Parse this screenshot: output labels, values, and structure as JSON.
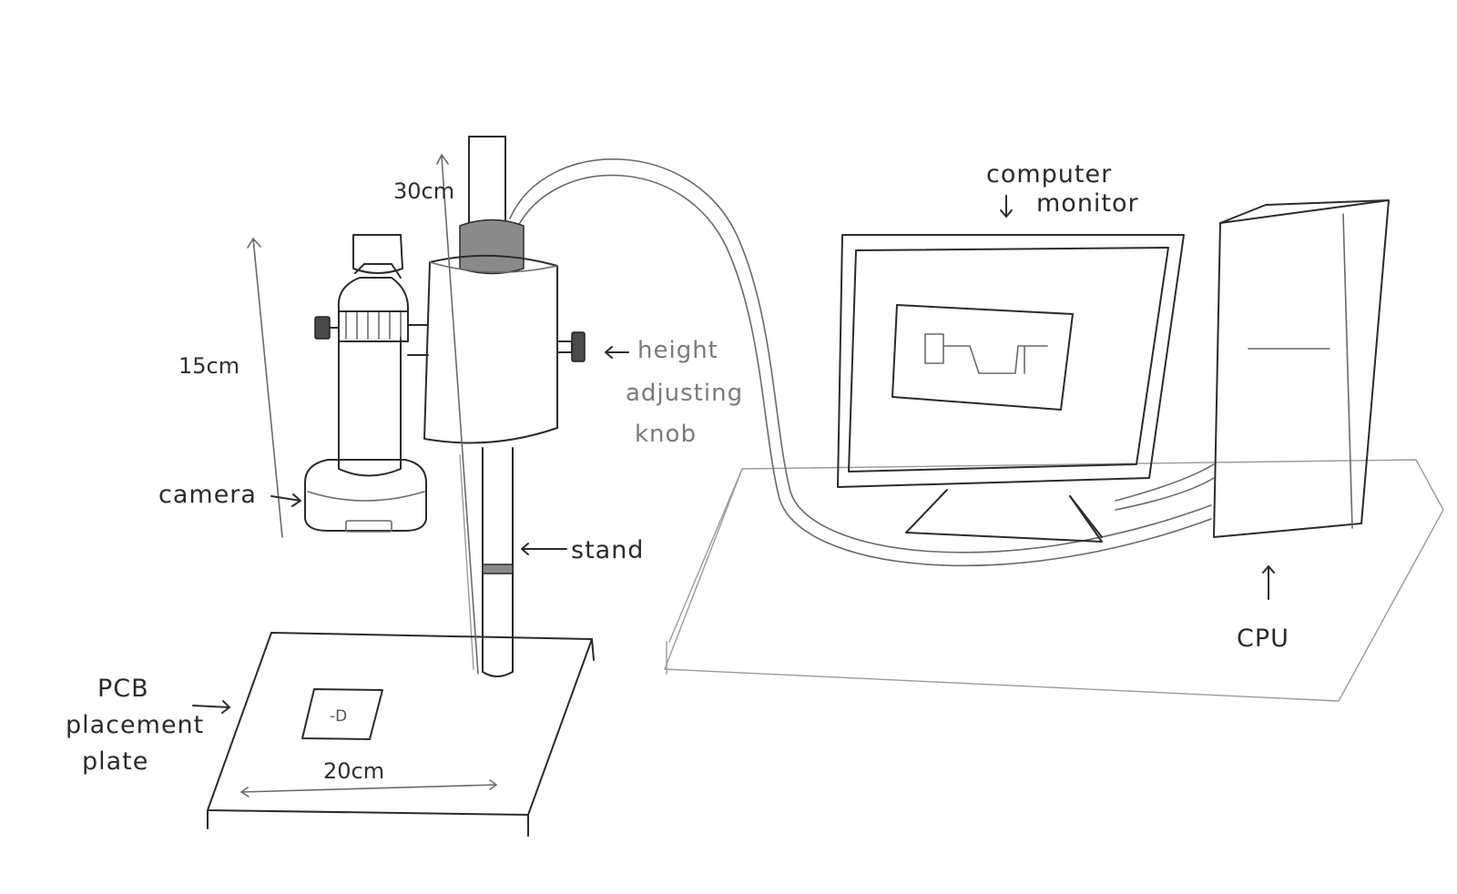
{
  "labels": {
    "dim_30cm": "30cm",
    "dim_15cm": "15cm",
    "camera": "camera",
    "height_line1": "height",
    "height_line2": "adjusting",
    "height_line3": "knob",
    "stand": "stand",
    "computer_line1": "computer",
    "computer_line2": "monitor",
    "cpu": "CPU",
    "pcb_line1": "PCB",
    "pcb_line2": "placement",
    "pcb_line3": "plate",
    "dim_20cm": "20cm"
  },
  "colors": {
    "ink": "#2b2b2b",
    "paper": "#ffffff"
  }
}
